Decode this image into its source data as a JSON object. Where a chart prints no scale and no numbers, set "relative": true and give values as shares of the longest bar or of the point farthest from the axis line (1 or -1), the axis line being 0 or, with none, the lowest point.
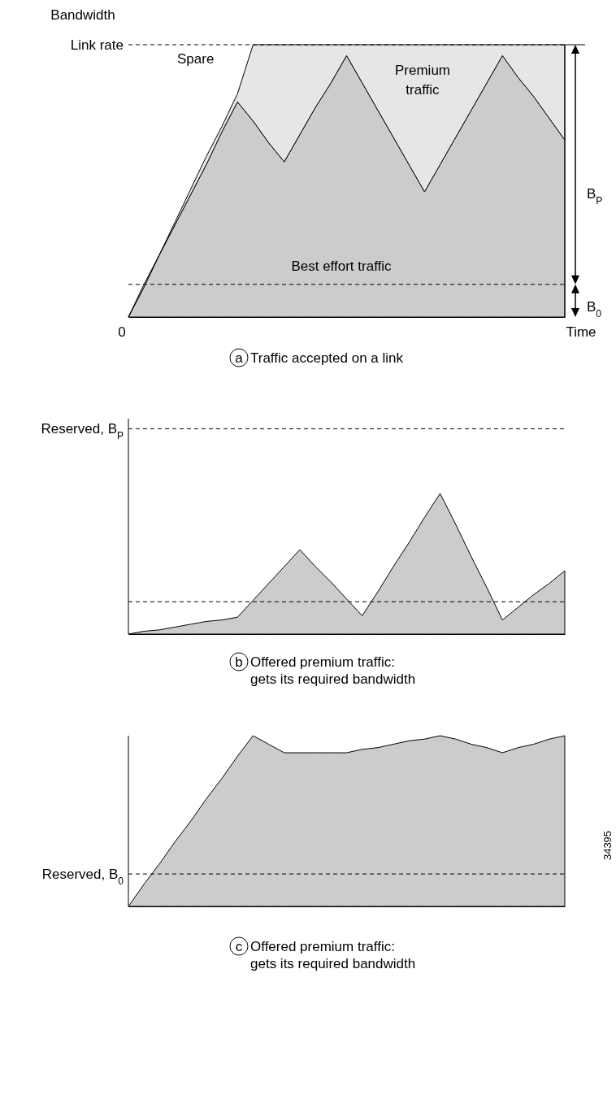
{
  "chart_data": [
    {
      "type": "area",
      "relative": true,
      "stacked": true,
      "title": "Traffic accepted on a link",
      "ylabel": "Bandwidth",
      "xlabel": "Time",
      "line_style": "solid",
      "categories": [
        null,
        null,
        null,
        null,
        null,
        null,
        null,
        null,
        null,
        null,
        null,
        null,
        null,
        null,
        null,
        null,
        null,
        null,
        null,
        null,
        null,
        null,
        null,
        null,
        null,
        null,
        null,
        null,
        null
      ],
      "annotations": [
        "a",
        "Spare",
        "Premium traffic",
        "Best effort traffic",
        "B$_{P}$",
        "B$_{0}$",
        "0"
      ],
      "ref_lines": [
        {
          "axis": "y",
          "value": 1,
          "label": "Link rate",
          "line_style": "dashed"
        },
        {
          "axis": "y",
          "value": 0.12,
          "line_style": "dashed"
        }
      ],
      "series": [
        {
          "color": "#cccccc",
          "values": [
            0,
            0.11,
            0.23,
            0.34,
            0.45,
            0.56,
            0.68,
            0.79,
            0.72,
            0.64,
            0.57,
            0.67,
            0.77,
            0.86,
            0.96,
            0.86,
            0.76,
            0.66,
            0.56,
            0.46,
            0.56,
            0.66,
            0.76,
            0.86,
            0.96,
            0.88,
            0.81,
            0.73,
            0.65
          ]
        },
        {
          "color": "#e6e6e6",
          "values": [
            0,
            0.01,
            0,
            0.01,
            0.02,
            0.03,
            0.02,
            0.03,
            0.28,
            0.36,
            0.43,
            0.33,
            0.23,
            0.14,
            0.04,
            0.14,
            0.24,
            0.34,
            0.44,
            0.54,
            0.44,
            0.34,
            0.24,
            0.14,
            0.04,
            0.12,
            0.19,
            0.27,
            0.35
          ]
        }
      ]
    },
    {
      "type": "area",
      "relative": true,
      "title": "Offered premium traffic:\ngets its required bandwidth",
      "line_style": "solid",
      "categories": [
        null,
        null,
        null,
        null,
        null,
        null,
        null,
        null,
        null,
        null,
        null,
        null,
        null,
        null,
        null,
        null,
        null,
        null,
        null,
        null,
        null,
        null,
        null,
        null,
        null,
        null,
        null,
        null,
        null
      ],
      "annotations": [
        "b"
      ],
      "ref_lines": [
        {
          "axis": "y",
          "value": 1.46,
          "label": "Reserved, B$_{P}$",
          "line_style": "dashed"
        },
        {
          "axis": "y",
          "value": 0.23,
          "line_style": "dashed"
        }
      ],
      "series": [
        {
          "color": "#cccccc",
          "values": [
            0,
            0.02,
            0.03,
            0.05,
            0.07,
            0.09,
            0.1,
            0.12,
            0.24,
            0.36,
            0.48,
            0.6,
            0.48,
            0.37,
            0.25,
            0.13,
            0.3,
            0.48,
            0.65,
            0.83,
            1,
            0.78,
            0.55,
            0.33,
            0.1,
            0.19,
            0.28,
            0.36,
            0.45
          ]
        }
      ]
    },
    {
      "type": "area",
      "relative": true,
      "title": "Offered premium traffic:\ngets its required bandwidth",
      "line_style": "solid",
      "categories": [
        null,
        null,
        null,
        null,
        null,
        null,
        null,
        null,
        null,
        null,
        null,
        null,
        null,
        null,
        null,
        null,
        null,
        null,
        null,
        null,
        null,
        null,
        null,
        null,
        null,
        null,
        null,
        null,
        null
      ],
      "annotations": [
        "c",
        "34395"
      ],
      "ref_lines": [
        {
          "axis": "y",
          "value": 0.19,
          "label": "Reserved, B$_{0}$",
          "line_style": "dashed"
        }
      ],
      "series": [
        {
          "color": "#cccccc",
          "values": [
            0,
            0.13,
            0.25,
            0.38,
            0.5,
            0.63,
            0.75,
            0.88,
            1,
            0.95,
            0.9,
            0.9,
            0.9,
            0.9,
            0.9,
            0.92,
            0.93,
            0.95,
            0.97,
            0.98,
            1,
            0.98,
            0.95,
            0.93,
            0.9,
            0.93,
            0.95,
            0.98,
            1
          ]
        }
      ]
    }
  ]
}
